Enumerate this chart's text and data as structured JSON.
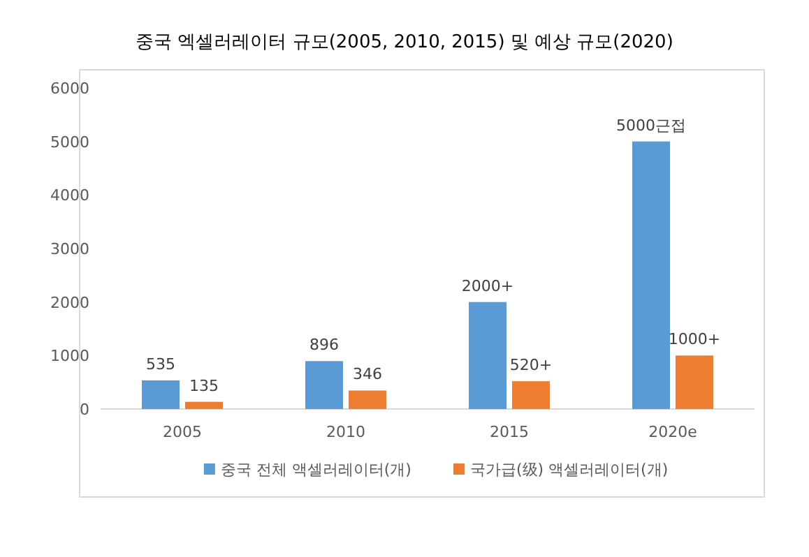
{
  "chart_data": {
    "type": "bar",
    "title": "중국 엑셀러레이터 규모(2005, 2010, 2015) 및 예상 규모(2020)",
    "categories": [
      "2005",
      "2010",
      "2015",
      "2020e"
    ],
    "series": [
      {
        "name": "중국 전체 액셀러레이터(개)",
        "color": "#5b9bd5",
        "values": [
          535,
          896,
          2000,
          5000
        ],
        "value_labels": [
          "535",
          "896",
          "2000+",
          "5000근접"
        ]
      },
      {
        "name": "국가급(级) 액셀러레이터(개)",
        "color": "#ed7d31",
        "values": [
          135,
          346,
          520,
          1000
        ],
        "value_labels": [
          "135",
          "346",
          "520+",
          "1000+"
        ]
      }
    ],
    "ylim": [
      0,
      6000
    ],
    "yticks": [
      0,
      1000,
      2000,
      3000,
      4000,
      5000,
      6000
    ],
    "legend": "bottom"
  }
}
